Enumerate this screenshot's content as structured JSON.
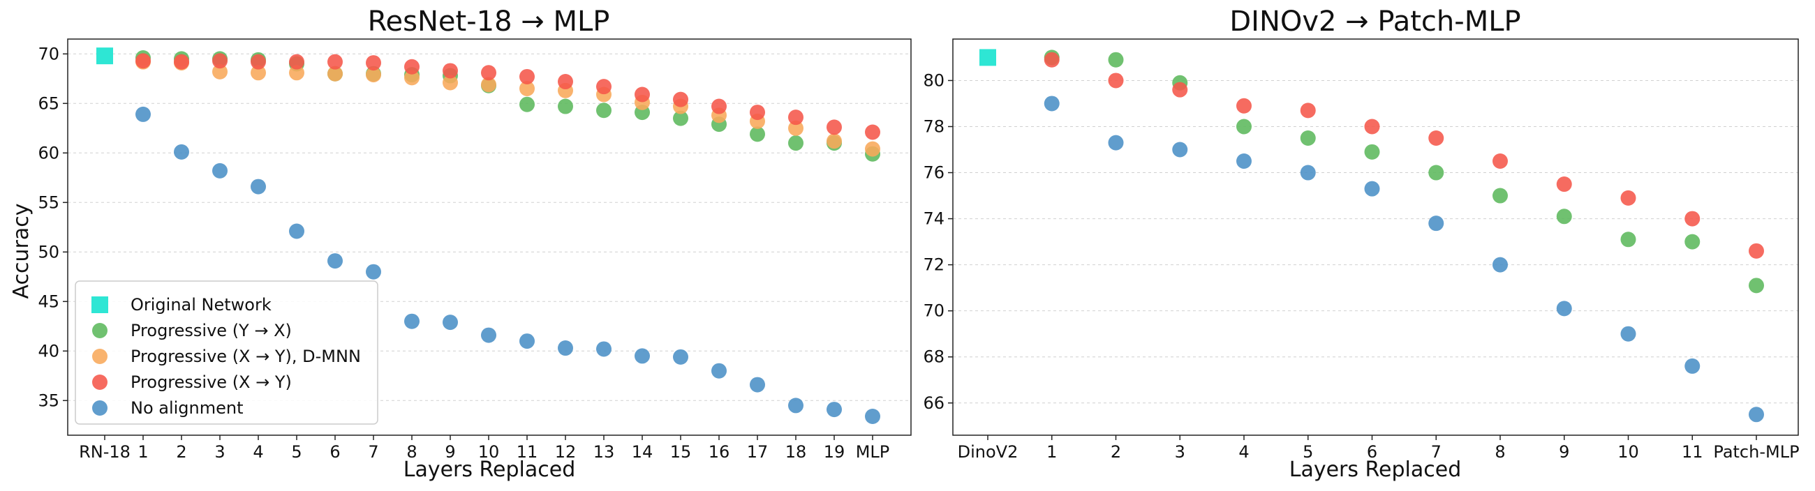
{
  "colors": {
    "original": "#2ee6d4",
    "prog_yx": "#5cb85c",
    "prog_xy_dmnn": "#f8a85a",
    "prog_xy": "#f5574a",
    "no_align": "#4a8fc6"
  },
  "chart_data": [
    {
      "type": "scatter",
      "title": "ResNet-18 → MLP",
      "xlabel": "Layers Replaced",
      "ylabel": "Accuracy",
      "categories": [
        "RN-18",
        "1",
        "2",
        "3",
        "4",
        "5",
        "6",
        "7",
        "8",
        "9",
        "10",
        "11",
        "12",
        "13",
        "14",
        "15",
        "16",
        "17",
        "18",
        "19",
        "MLP"
      ],
      "ylim": [
        31.5,
        71.5
      ],
      "yticks": [
        35,
        40,
        45,
        50,
        55,
        60,
        65,
        70
      ],
      "grid": true,
      "legend": {
        "position": "bottom-left",
        "entries": [
          "Original Network",
          "Progressive (Y → X)",
          "Progressive (X → Y), D-MNN",
          "Progressive (X → Y)",
          "No alignment"
        ]
      },
      "series": [
        {
          "name": "Original Network",
          "marker": "square",
          "color_key": "original",
          "x": [
            0
          ],
          "values": [
            69.8
          ]
        },
        {
          "name": "Progressive (Y → X)",
          "marker": "circle",
          "color_key": "prog_yx",
          "x": [
            1,
            2,
            3,
            4,
            5,
            6,
            7,
            8,
            9,
            10,
            11,
            12,
            13,
            14,
            15,
            16,
            17,
            18,
            19,
            20
          ],
          "values": [
            69.6,
            69.5,
            69.5,
            69.4,
            69.0,
            68.0,
            68.0,
            67.9,
            67.8,
            66.8,
            64.9,
            64.7,
            64.3,
            64.1,
            63.5,
            62.9,
            61.9,
            61.0,
            61.0,
            59.9
          ]
        },
        {
          "name": "Progressive (X → Y), D-MNN",
          "marker": "circle",
          "color_key": "prog_xy_dmnn",
          "x": [
            1,
            2,
            3,
            4,
            5,
            6,
            7,
            8,
            9,
            10,
            11,
            12,
            13,
            14,
            15,
            16,
            17,
            18,
            19,
            20
          ],
          "values": [
            69.2,
            69.1,
            68.2,
            68.1,
            68.1,
            68.0,
            67.9,
            67.6,
            67.1,
            66.9,
            66.5,
            66.3,
            65.9,
            65.1,
            64.7,
            63.8,
            63.2,
            62.5,
            61.2,
            60.4
          ]
        },
        {
          "name": "Progressive (X → Y)",
          "marker": "circle",
          "color_key": "prog_xy",
          "x": [
            1,
            2,
            3,
            4,
            5,
            6,
            7,
            8,
            9,
            10,
            11,
            12,
            13,
            14,
            15,
            16,
            17,
            18,
            19,
            20
          ],
          "values": [
            69.3,
            69.2,
            69.3,
            69.2,
            69.2,
            69.2,
            69.1,
            68.7,
            68.3,
            68.1,
            67.7,
            67.2,
            66.7,
            65.9,
            65.4,
            64.7,
            64.1,
            63.6,
            62.6,
            62.1
          ]
        },
        {
          "name": "No alignment",
          "marker": "circle",
          "color_key": "no_align",
          "x": [
            1,
            2,
            3,
            4,
            5,
            6,
            7,
            8,
            9,
            10,
            11,
            12,
            13,
            14,
            15,
            16,
            17,
            18,
            19,
            20
          ],
          "values": [
            63.9,
            60.1,
            58.2,
            56.6,
            52.1,
            49.1,
            48.0,
            43.0,
            42.9,
            41.6,
            41.0,
            40.3,
            40.2,
            39.5,
            39.4,
            38.0,
            36.6,
            34.5,
            34.1,
            33.4
          ]
        }
      ]
    },
    {
      "type": "scatter",
      "title": "DINOv2 → Patch-MLP",
      "xlabel": "Layers Replaced",
      "ylabel": "",
      "categories": [
        "DinoV2",
        "1",
        "2",
        "3",
        "4",
        "5",
        "6",
        "7",
        "8",
        "9",
        "10",
        "11",
        "Patch-MLP"
      ],
      "ylim": [
        64.6,
        81.8
      ],
      "yticks": [
        66,
        68,
        70,
        72,
        74,
        76,
        78,
        80
      ],
      "grid": true,
      "series": [
        {
          "name": "Original Network",
          "marker": "square",
          "color_key": "original",
          "x": [
            0
          ],
          "values": [
            81.0
          ]
        },
        {
          "name": "Progressive (Y → X)",
          "marker": "circle",
          "color_key": "prog_yx",
          "x": [
            1,
            2,
            3,
            4,
            5,
            6,
            7,
            8,
            9,
            10,
            11,
            12
          ],
          "values": [
            81.0,
            80.9,
            79.9,
            78.0,
            77.5,
            76.9,
            76.0,
            75.0,
            74.1,
            73.1,
            73.0,
            71.1
          ]
        },
        {
          "name": "Progressive (X → Y)",
          "marker": "circle",
          "color_key": "prog_xy",
          "x": [
            1,
            2,
            3,
            4,
            5,
            6,
            7,
            8,
            9,
            10,
            11,
            12
          ],
          "values": [
            80.9,
            80.0,
            79.6,
            78.9,
            78.7,
            78.0,
            77.5,
            76.5,
            75.5,
            74.9,
            74.0,
            72.6
          ]
        },
        {
          "name": "No alignment",
          "marker": "circle",
          "color_key": "no_align",
          "x": [
            1,
            2,
            3,
            4,
            5,
            6,
            7,
            8,
            9,
            10,
            11,
            12
          ],
          "values": [
            79.0,
            77.3,
            77.0,
            76.5,
            76.0,
            75.3,
            73.8,
            72.0,
            70.1,
            69.0,
            67.6,
            65.5
          ]
        }
      ]
    }
  ]
}
